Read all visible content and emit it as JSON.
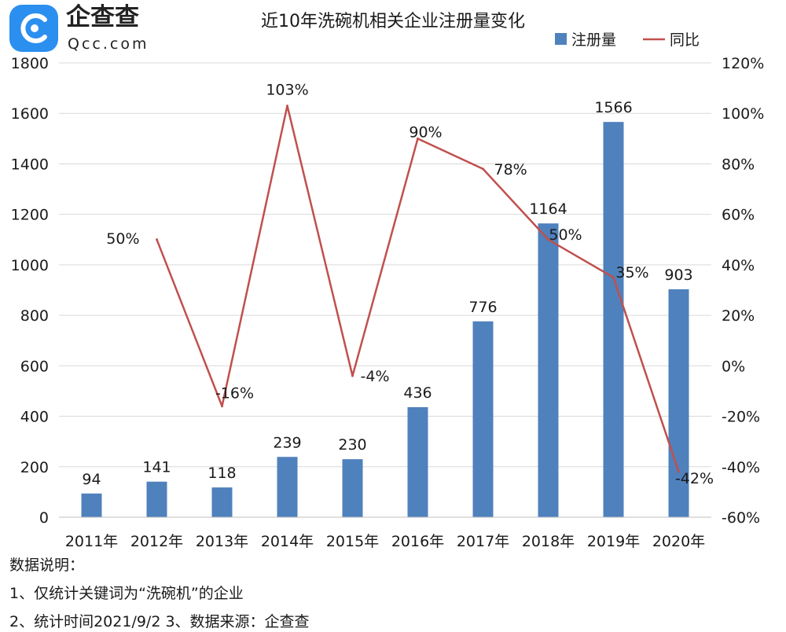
{
  "logo": {
    "name": "企查查",
    "domain": "Qcc.com",
    "color": "#2b8ff0"
  },
  "chart_data": {
    "type": "bar",
    "title": "近10年洗碗机相关企业注册量变化",
    "categories": [
      "2011年",
      "2012年",
      "2013年",
      "2014年",
      "2015年",
      "2016年",
      "2017年",
      "2018年",
      "2019年",
      "2020年"
    ],
    "series": [
      {
        "name": "注册量",
        "type": "bar",
        "axis": "left",
        "color": "#4f81bd",
        "values": [
          94,
          141,
          118,
          239,
          230,
          436,
          776,
          1164,
          1566,
          903
        ],
        "labels": [
          "94",
          "141",
          "118",
          "239",
          "230",
          "436",
          "776",
          "1164",
          "1566",
          "903"
        ]
      },
      {
        "name": "同比",
        "type": "line",
        "axis": "right",
        "color": "#c0504d",
        "values": [
          null,
          50,
          -16,
          103,
          -4,
          90,
          78,
          50,
          35,
          -42
        ],
        "labels": [
          "",
          "50%",
          "-16%",
          "103%",
          "-4%",
          "90%",
          "78%",
          "50%",
          "35%",
          "-42%"
        ]
      }
    ],
    "y_left": {
      "min": 0,
      "max": 1800,
      "ticks": [
        "0",
        "200",
        "400",
        "600",
        "800",
        "1000",
        "1200",
        "1400",
        "1600",
        "1800"
      ]
    },
    "y_right": {
      "min": -60,
      "max": 120,
      "ticks": [
        "-60%",
        "-40%",
        "-20%",
        "0%",
        "20%",
        "40%",
        "60%",
        "80%",
        "100%",
        "120%"
      ]
    },
    "grid": true,
    "legend": "top-right"
  },
  "notes": {
    "heading": "数据说明：",
    "line1": "1、仅统计关键词为“洗碗机”的企业",
    "line2": "2、统计时间2021/9/2   3、数据来源：企查查"
  }
}
